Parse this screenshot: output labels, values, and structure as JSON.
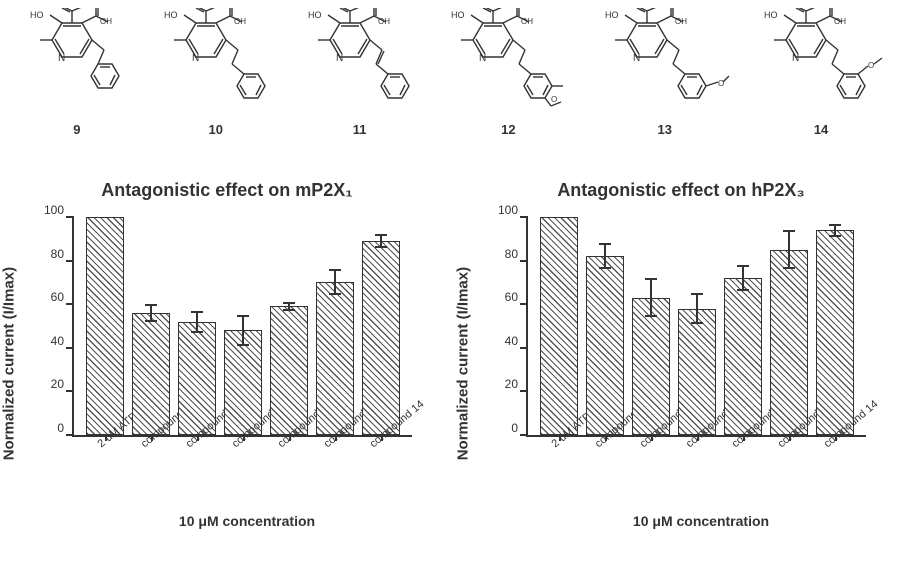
{
  "compounds": [
    {
      "id": "9",
      "substituent": "benzyl",
      "linker": "CH2",
      "ring_sub": ""
    },
    {
      "id": "10",
      "substituent": "phenethyl",
      "linker": "CH2CH2",
      "ring_sub": ""
    },
    {
      "id": "11",
      "substituent": "styryl",
      "linker": "CH=CH",
      "ring_sub": ""
    },
    {
      "id": "12",
      "substituent": "4-OMe-phenethyl",
      "linker": "CH2CH2",
      "ring_sub": "4-OMe"
    },
    {
      "id": "13",
      "substituent": "3-OMe-phenethyl",
      "linker": "CH2CH2",
      "ring_sub": "3-OMe"
    },
    {
      "id": "14",
      "substituent": "2-OMe-phenethyl",
      "linker": "CH2CH2",
      "ring_sub": "2-OMe"
    }
  ],
  "chart_left": {
    "type": "bar",
    "title": "Antagonistic effect on mP2X₁",
    "ylabel": "Normalized current (I/Imax)",
    "xlabel": "10 μM concentration",
    "ylim": [
      0,
      100
    ],
    "ytick_step": 20,
    "yticks": [
      0,
      20,
      40,
      60,
      80,
      100
    ],
    "bar_fill": "#ffffff",
    "bar_border": "#333333",
    "hatch_color": "#555555",
    "background_color": "#ffffff",
    "title_fontsize": 18,
    "label_fontsize": 15,
    "categories": [
      "2 uM ATP",
      "compound 9",
      "compound 10",
      "compound 11",
      "compound 12",
      "compound 13",
      "compound 14"
    ],
    "values": [
      100,
      56,
      52,
      48,
      59,
      70,
      89
    ],
    "errors": [
      0,
      4,
      5,
      7,
      2,
      6,
      3
    ]
  },
  "chart_right": {
    "type": "bar",
    "title": "Antagonistic effect on hP2X₃",
    "ylabel": "Normalized current (I/Imax)",
    "xlabel": "10 μM concentration",
    "ylim": [
      0,
      100
    ],
    "ytick_step": 20,
    "yticks": [
      0,
      20,
      40,
      60,
      80,
      100
    ],
    "bar_fill": "#ffffff",
    "bar_border": "#333333",
    "hatch_color": "#555555",
    "background_color": "#ffffff",
    "title_fontsize": 18,
    "label_fontsize": 15,
    "categories": [
      "2 uM ATP",
      "compound 9",
      "compound 10",
      "compound 11",
      "compound 12",
      "compound 13",
      "compound 14"
    ],
    "values": [
      100,
      82,
      63,
      58,
      72,
      85,
      94
    ],
    "errors": [
      0,
      6,
      9,
      7,
      6,
      9,
      3
    ]
  }
}
